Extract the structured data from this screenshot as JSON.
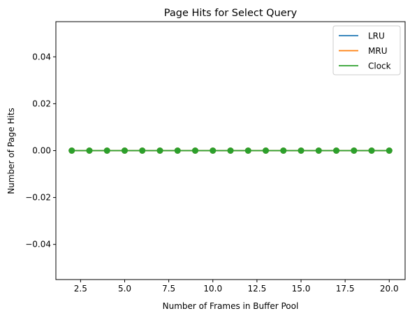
{
  "chart_data": {
    "type": "line",
    "title": "Page Hits for Select Query",
    "xlabel": "Number of Frames in Buffer Pool",
    "ylabel": "Number of Page Hits",
    "xlim": [
      1.1,
      20.9
    ],
    "ylim": [
      -0.055,
      0.055
    ],
    "x_ticks": [
      2.5,
      5.0,
      7.5,
      10.0,
      12.5,
      15.0,
      17.5,
      20.0
    ],
    "x_tick_labels": [
      "2.5",
      "5.0",
      "7.5",
      "10.0",
      "12.5",
      "15.0",
      "17.5",
      "20.0"
    ],
    "y_ticks": [
      -0.04,
      -0.02,
      0.0,
      0.02,
      0.04
    ],
    "y_tick_labels": [
      "−0.04",
      "−0.02",
      "0.00",
      "0.02",
      "0.04"
    ],
    "grid": false,
    "legend_position": "top-right",
    "x": [
      2,
      3,
      4,
      5,
      6,
      7,
      8,
      9,
      10,
      11,
      12,
      13,
      14,
      15,
      16,
      17,
      18,
      19,
      20
    ],
    "series": [
      {
        "name": "LRU",
        "color": "#1f77b4",
        "values": [
          0,
          0,
          0,
          0,
          0,
          0,
          0,
          0,
          0,
          0,
          0,
          0,
          0,
          0,
          0,
          0,
          0,
          0,
          0
        ]
      },
      {
        "name": "MRU",
        "color": "#ff7f0e",
        "values": [
          0,
          0,
          0,
          0,
          0,
          0,
          0,
          0,
          0,
          0,
          0,
          0,
          0,
          0,
          0,
          0,
          0,
          0,
          0
        ]
      },
      {
        "name": "Clock",
        "color": "#2ca02c",
        "values": [
          0,
          0,
          0,
          0,
          0,
          0,
          0,
          0,
          0,
          0,
          0,
          0,
          0,
          0,
          0,
          0,
          0,
          0,
          0
        ]
      }
    ]
  }
}
